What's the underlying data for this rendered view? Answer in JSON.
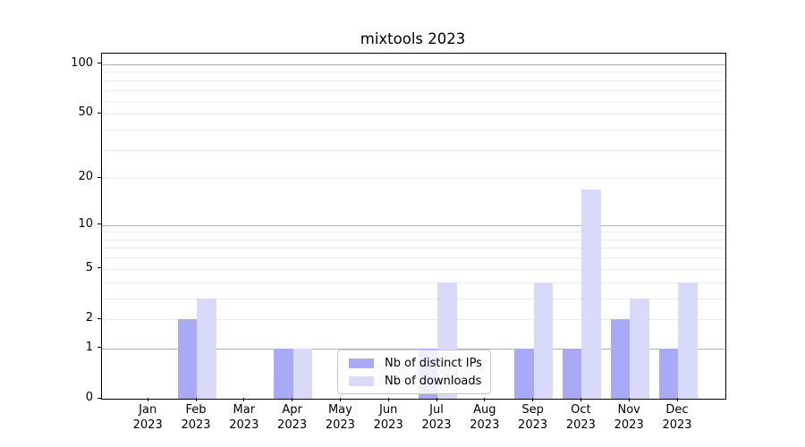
{
  "figure": {
    "background": "#ffffff"
  },
  "chart_data": {
    "type": "bar",
    "title": "mixtools 2023",
    "categories": [
      "Jan 2023",
      "Feb 2023",
      "Mar 2023",
      "Apr 2023",
      "May 2023",
      "Jun 2023",
      "Jul 2023",
      "Aug 2023",
      "Sep 2023",
      "Oct 2023",
      "Nov 2023",
      "Dec 2023"
    ],
    "series": [
      {
        "name": "Nb of distinct IPs",
        "color": "#a9a9f8",
        "values": [
          0,
          2,
          0,
          1,
          0,
          0,
          1,
          0,
          1,
          1,
          2,
          1
        ]
      },
      {
        "name": "Nb of downloads",
        "color": "#d9d9fa",
        "values": [
          0,
          3,
          0,
          1,
          0,
          0,
          4,
          0,
          4,
          17,
          3,
          4
        ]
      }
    ],
    "xlabel": "",
    "ylabel": "",
    "yscale": "log1p",
    "ylim": [
      0,
      116
    ],
    "yticks": [
      0,
      1,
      2,
      5,
      10,
      20,
      50,
      100
    ],
    "gridlines": {
      "major": [
        1,
        10,
        100
      ],
      "minor": [
        2,
        3,
        4,
        5,
        6,
        7,
        8,
        9,
        20,
        30,
        40,
        50,
        60,
        70,
        80,
        90
      ]
    },
    "grid": "horizontal",
    "legend_position": "lower center inside",
    "colors": {
      "grid_major": "#b0b0b0",
      "grid_minor": "#ebebeb",
      "axis": "#000000",
      "text": "#000000",
      "legend_border": "#c9c9c9"
    }
  }
}
